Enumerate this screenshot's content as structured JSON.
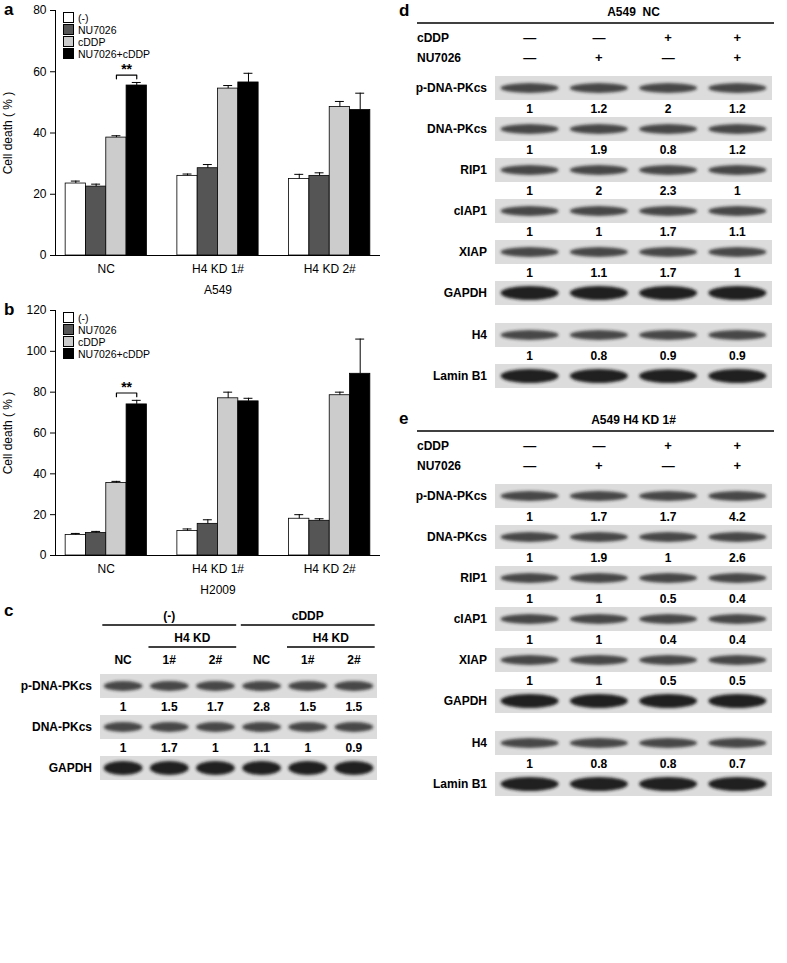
{
  "chart_data": [
    {
      "type": "bar",
      "title": "a",
      "ylabel": "Cell death ( % )",
      "xlabel": "A549",
      "categories": [
        "NC",
        "H4 KD 1#",
        "H4 KD 2#"
      ],
      "series": [
        {
          "name": "(-)",
          "color": "#ffffff",
          "values": [
            23.5,
            26,
            25
          ],
          "errors": [
            0.8,
            0.6,
            1.5
          ]
        },
        {
          "name": "NU7026",
          "color": "#555555",
          "values": [
            22.5,
            28.5,
            26
          ],
          "errors": [
            0.8,
            1.2,
            1
          ]
        },
        {
          "name": "cDDP",
          "color": "#cccccc",
          "values": [
            38.5,
            54.5,
            48.5
          ],
          "errors": [
            0.6,
            1,
            1.8
          ]
        },
        {
          "name": "NU7026+cDDP",
          "color": "#000000",
          "values": [
            55.5,
            56.5,
            47.5
          ],
          "errors": [
            1,
            3,
            5.5
          ]
        }
      ],
      "ylim": [
        0,
        80
      ],
      "yticks": [
        0,
        20,
        40,
        60,
        80
      ],
      "legend": "top-left",
      "annotations": [
        {
          "text": "**",
          "category": "NC",
          "between": [
            "cDDP",
            "NU7026+cDDP"
          ]
        }
      ]
    },
    {
      "type": "bar",
      "title": "b",
      "ylabel": "Cell death ( % )",
      "xlabel": "H2009",
      "categories": [
        "NC",
        "H4 KD 1#",
        "H4 KD 2#"
      ],
      "series": [
        {
          "name": "(-)",
          "color": "#ffffff",
          "values": [
            10,
            12,
            18
          ],
          "errors": [
            0.8,
            1,
            2
          ]
        },
        {
          "name": "NU7026",
          "color": "#555555",
          "values": [
            11,
            15.5,
            17
          ],
          "errors": [
            0.8,
            2,
            1
          ]
        },
        {
          "name": "cDDP",
          "color": "#cccccc",
          "values": [
            35.5,
            77,
            78.5
          ],
          "errors": [
            0.8,
            3,
            1.5
          ]
        },
        {
          "name": "NU7026+cDDP",
          "color": "#000000",
          "values": [
            74,
            75.5,
            89
          ],
          "errors": [
            2,
            1.5,
            17
          ]
        }
      ],
      "ylim": [
        0,
        120
      ],
      "yticks": [
        0,
        20,
        40,
        60,
        80,
        100,
        120
      ],
      "legend": "top-left",
      "annotations": [
        {
          "text": "**",
          "category": "NC",
          "between": [
            "cDDP",
            "NU7026+cDDP"
          ]
        }
      ]
    }
  ],
  "blots": [
    {
      "panel": "c",
      "groups": [
        {
          "label": "(-)",
          "first": 0,
          "last": 2
        },
        {
          "label": "cDDP",
          "first": 3,
          "last": 5
        }
      ],
      "subgroups": [
        {
          "label": "H4 KD",
          "first": 1,
          "last": 2
        },
        {
          "label": "H4 KD",
          "first": 4,
          "last": 5
        }
      ],
      "lanes": [
        "NC",
        "1#",
        "2#",
        "NC",
        "1#",
        "2#"
      ],
      "row_groups": [
        [
          {
            "label": "p-DNA-PKcs",
            "quant": [
              1,
              1.5,
              1.7,
              2.8,
              1.5,
              1.5
            ]
          },
          {
            "label": "DNA-PKcs",
            "quant": [
              1,
              1.7,
              1,
              1.1,
              1,
              0.9
            ]
          },
          {
            "label": "GAPDH"
          }
        ]
      ]
    },
    {
      "panel": "d",
      "title": "A549  NC",
      "conditions": [
        {
          "label": "cDDP",
          "signs": [
            "—",
            "—",
            "+",
            "+"
          ]
        },
        {
          "label": "NU7026",
          "signs": [
            "—",
            "+",
            "—",
            "+"
          ]
        }
      ],
      "row_groups": [
        [
          {
            "label": "p-DNA-PKcs",
            "quant": [
              1,
              1.2,
              2,
              1.2
            ]
          },
          {
            "label": "DNA-PKcs",
            "quant": [
              1,
              1.9,
              0.8,
              1.2
            ]
          },
          {
            "label": "RIP1",
            "quant": [
              1,
              2,
              2.3,
              1
            ]
          },
          {
            "label": "cIAP1",
            "quant": [
              1,
              1,
              1.7,
              1.1
            ]
          },
          {
            "label": "XIAP",
            "quant": [
              1,
              1.1,
              1.7,
              1
            ]
          },
          {
            "label": "GAPDH"
          }
        ],
        [
          {
            "label": "H4",
            "quant": [
              1,
              0.8,
              0.9,
              0.9
            ]
          },
          {
            "label": "Lamin B1"
          }
        ]
      ]
    },
    {
      "panel": "e",
      "title": "A549 H4 KD 1#",
      "conditions": [
        {
          "label": "cDDP",
          "signs": [
            "—",
            "—",
            "+",
            "+"
          ]
        },
        {
          "label": "NU7026",
          "signs": [
            "—",
            "+",
            "—",
            "+"
          ]
        }
      ],
      "row_groups": [
        [
          {
            "label": "p-DNA-PKcs",
            "quant": [
              1,
              1.7,
              1.7,
              4.2
            ]
          },
          {
            "label": "DNA-PKcs",
            "quant": [
              1,
              1.9,
              1,
              2.6
            ]
          },
          {
            "label": "RIP1",
            "quant": [
              1,
              1,
              0.5,
              0.4
            ]
          },
          {
            "label": "cIAP1",
            "quant": [
              1,
              1,
              0.4,
              0.4
            ]
          },
          {
            "label": "XIAP",
            "quant": [
              1,
              1,
              0.5,
              0.5
            ]
          },
          {
            "label": "GAPDH"
          }
        ],
        [
          {
            "label": "H4",
            "quant": [
              1,
              0.8,
              0.8,
              0.7
            ]
          },
          {
            "label": "Lamin B1"
          }
        ]
      ]
    }
  ]
}
